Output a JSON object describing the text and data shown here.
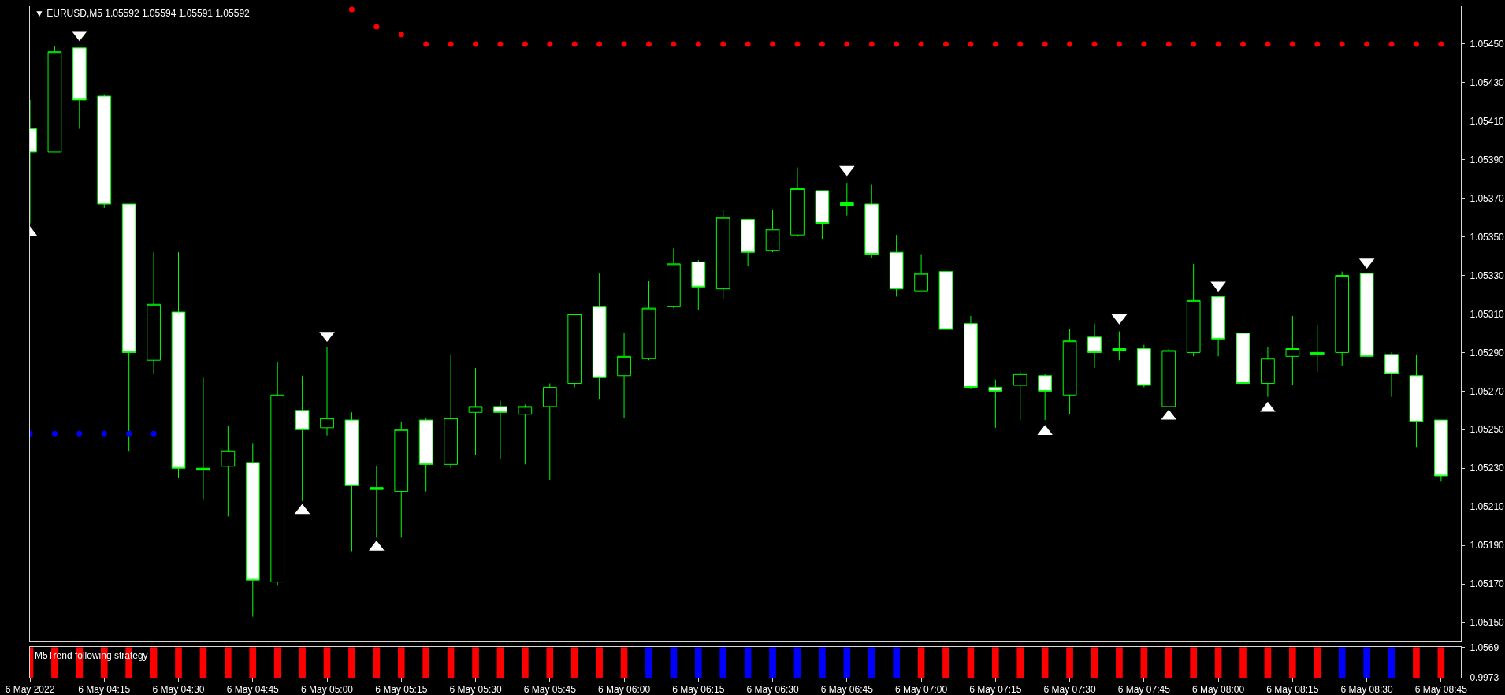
{
  "chart_data": [
    {
      "type": "candlestick",
      "title": "▼ EURUSD,M5 1.05592 1.05594 1.05591 1.05592",
      "x": [
        "2022-05-06T04:00",
        "2022-05-06T04:05",
        "2022-05-06T04:10",
        "2022-05-06T04:15",
        "2022-05-06T04:20",
        "2022-05-06T04:25",
        "2022-05-06T04:30",
        "2022-05-06T04:35",
        "2022-05-06T04:40",
        "2022-05-06T04:45",
        "2022-05-06T04:50",
        "2022-05-06T04:55",
        "2022-05-06T05:00",
        "2022-05-06T05:05",
        "2022-05-06T05:10",
        "2022-05-06T05:15",
        "2022-05-06T05:20",
        "2022-05-06T05:25",
        "2022-05-06T05:30",
        "2022-05-06T05:35",
        "2022-05-06T05:40",
        "2022-05-06T05:45",
        "2022-05-06T05:50",
        "2022-05-06T05:55",
        "2022-05-06T06:00",
        "2022-05-06T06:05",
        "2022-05-06T06:10",
        "2022-05-06T06:15",
        "2022-05-06T06:20",
        "2022-05-06T06:25",
        "2022-05-06T06:30",
        "2022-05-06T06:35",
        "2022-05-06T06:40",
        "2022-05-06T06:45",
        "2022-05-06T06:50",
        "2022-05-06T06:55",
        "2022-05-06T07:00",
        "2022-05-06T07:05",
        "2022-05-06T07:10",
        "2022-05-06T07:15",
        "2022-05-06T07:20",
        "2022-05-06T07:25",
        "2022-05-06T07:30",
        "2022-05-06T07:35",
        "2022-05-06T07:40",
        "2022-05-06T07:45",
        "2022-05-06T07:50",
        "2022-05-06T07:55",
        "2022-05-06T08:00",
        "2022-05-06T08:05",
        "2022-05-06T08:10",
        "2022-05-06T08:15",
        "2022-05-06T08:20",
        "2022-05-06T08:25",
        "2022-05-06T08:30",
        "2022-05-06T08:35",
        "2022-05-06T08:40",
        "2022-05-06T08:45"
      ],
      "ohlc": [
        [
          1.05406,
          1.05421,
          1.05357,
          1.05394
        ],
        [
          1.05394,
          1.05449,
          1.05394,
          1.05446
        ],
        [
          1.05448,
          1.05448,
          1.05406,
          1.05421
        ],
        [
          1.05423,
          1.05424,
          1.05365,
          1.05367
        ],
        [
          1.05367,
          1.05367,
          1.05239,
          1.0529
        ],
        [
          1.05286,
          1.05342,
          1.05279,
          1.05315
        ],
        [
          1.05311,
          1.05342,
          1.05225,
          1.0523
        ],
        [
          1.05229,
          1.05277,
          1.05214,
          1.0523
        ],
        [
          1.05231,
          1.05252,
          1.05205,
          1.05239
        ],
        [
          1.05233,
          1.05243,
          1.05153,
          1.05172
        ],
        [
          1.05171,
          1.05285,
          1.05169,
          1.05268
        ],
        [
          1.0526,
          1.05278,
          1.05213,
          1.0525
        ],
        [
          1.05251,
          1.05293,
          1.05247,
          1.05256
        ],
        [
          1.05255,
          1.05259,
          1.05187,
          1.05221
        ],
        [
          1.05219,
          1.05231,
          1.05194,
          1.0522
        ],
        [
          1.05218,
          1.05254,
          1.05194,
          1.0525
        ],
        [
          1.05255,
          1.05256,
          1.05218,
          1.05232
        ],
        [
          1.05232,
          1.05289,
          1.0523,
          1.05256
        ],
        [
          1.05259,
          1.05282,
          1.05237,
          1.05262
        ],
        [
          1.05262,
          1.05265,
          1.05235,
          1.05259
        ],
        [
          1.05258,
          1.05263,
          1.05232,
          1.05262
        ],
        [
          1.05262,
          1.05274,
          1.05224,
          1.05272
        ],
        [
          1.05274,
          1.0531,
          1.05272,
          1.0531
        ],
        [
          1.05314,
          1.05331,
          1.05266,
          1.05277
        ],
        [
          1.05278,
          1.053,
          1.05256,
          1.05288
        ],
        [
          1.05287,
          1.05327,
          1.05286,
          1.05313
        ],
        [
          1.05314,
          1.05344,
          1.05313,
          1.05336
        ],
        [
          1.05337,
          1.05338,
          1.05312,
          1.05324
        ],
        [
          1.05323,
          1.05364,
          1.05318,
          1.0536
        ],
        [
          1.05359,
          1.05359,
          1.05335,
          1.05342
        ],
        [
          1.05343,
          1.05364,
          1.05342,
          1.05354
        ],
        [
          1.05351,
          1.05386,
          1.0535,
          1.05375
        ],
        [
          1.05374,
          1.05374,
          1.05349,
          1.05357
        ],
        [
          1.05366,
          1.05378,
          1.05361,
          1.05368
        ],
        [
          1.05367,
          1.05377,
          1.05339,
          1.05341
        ],
        [
          1.05342,
          1.05351,
          1.05319,
          1.05323
        ],
        [
          1.05322,
          1.05341,
          1.05322,
          1.05331
        ],
        [
          1.05332,
          1.05337,
          1.05292,
          1.05302
        ],
        [
          1.05305,
          1.05309,
          1.05271,
          1.05272
        ],
        [
          1.05272,
          1.05276,
          1.05251,
          1.0527
        ],
        [
          1.05273,
          1.0528,
          1.05255,
          1.05279
        ],
        [
          1.05278,
          1.05279,
          1.05255,
          1.0527
        ],
        [
          1.05268,
          1.05302,
          1.05258,
          1.05296
        ],
        [
          1.05298,
          1.05305,
          1.05282,
          1.0529
        ],
        [
          1.05291,
          1.05301,
          1.05286,
          1.05292
        ],
        [
          1.05292,
          1.05294,
          1.05272,
          1.05273
        ],
        [
          1.05262,
          1.05292,
          1.05262,
          1.05291
        ],
        [
          1.0529,
          1.05336,
          1.05288,
          1.05317
        ],
        [
          1.05319,
          1.05319,
          1.05288,
          1.05297
        ],
        [
          1.053,
          1.05314,
          1.05269,
          1.05274
        ],
        [
          1.05274,
          1.05293,
          1.05267,
          1.05287
        ],
        [
          1.05288,
          1.05309,
          1.05273,
          1.05292
        ],
        [
          1.0529,
          1.05304,
          1.0528,
          1.05289
        ],
        [
          1.0529,
          1.05332,
          1.05283,
          1.0533
        ],
        [
          1.05331,
          1.05331,
          1.05288,
          1.05288
        ],
        [
          1.05289,
          1.0529,
          1.05267,
          1.05279
        ],
        [
          1.05278,
          1.05289,
          1.05241,
          1.05254
        ],
        [
          1.05255,
          1.05255,
          1.05223,
          1.05226
        ]
      ],
      "color": "#00ff00",
      "colors": [
        "#ffffff",
        "#000000",
        "#ffffff",
        "#ffffff",
        "#ffffff",
        "#000000",
        "#ffffff",
        "#00ff00",
        "#000000",
        "#ffffff",
        "#000000",
        "#ffffff",
        "#000000",
        "#ffffff",
        "#00ff00",
        "#000000",
        "#ffffff",
        "#000000",
        "#000000",
        "#ffffff",
        "#000000",
        "#000000",
        "#000000",
        "#ffffff",
        "#000000",
        "#000000",
        "#000000",
        "#ffffff",
        "#000000",
        "#ffffff",
        "#000000",
        "#000000",
        "#ffffff",
        "#00ff00",
        "#ffffff",
        "#ffffff",
        "#000000",
        "#ffffff",
        "#ffffff",
        "#ffffff",
        "#000000",
        "#ffffff",
        "#000000",
        "#ffffff",
        "#00ff00",
        "#ffffff",
        "#000000",
        "#000000",
        "#ffffff",
        "#ffffff",
        "#000000",
        "#000000",
        "#00ff00",
        "#000000",
        "#ffffff",
        "#ffffff",
        "#ffffff",
        "#ffffff"
      ],
      "series": [
        {
          "type": "scatter",
          "color": "#ff0000",
          "marker": "circle",
          "x": [
            "2022-05-06T05:05",
            "2022-05-06T05:10",
            "2022-05-06T05:15",
            "2022-05-06T05:20",
            "2022-05-06T05:25",
            "2022-05-06T05:30",
            "2022-05-06T05:35",
            "2022-05-06T05:40",
            "2022-05-06T05:45",
            "2022-05-06T05:50",
            "2022-05-06T05:55",
            "2022-05-06T06:00",
            "2022-05-06T06:05",
            "2022-05-06T06:10",
            "2022-05-06T06:15",
            "2022-05-06T06:20",
            "2022-05-06T06:25",
            "2022-05-06T06:30",
            "2022-05-06T06:35",
            "2022-05-06T06:40",
            "2022-05-06T06:45",
            "2022-05-06T06:50",
            "2022-05-06T06:55",
            "2022-05-06T07:00",
            "2022-05-06T07:05",
            "2022-05-06T07:10",
            "2022-05-06T07:15",
            "2022-05-06T07:20",
            "2022-05-06T07:25",
            "2022-05-06T07:30",
            "2022-05-06T07:35",
            "2022-05-06T07:40",
            "2022-05-06T07:45",
            "2022-05-06T07:50",
            "2022-05-06T07:55",
            "2022-05-06T08:00",
            "2022-05-06T08:05",
            "2022-05-06T08:10",
            "2022-05-06T08:15",
            "2022-05-06T08:20",
            "2022-05-06T08:25",
            "2022-05-06T08:30",
            "2022-05-06T08:35",
            "2022-05-06T08:40",
            "2022-05-06T08:45"
          ],
          "values": [
            1.05468,
            1.05459,
            1.05455,
            1.0545,
            1.0545,
            1.0545,
            1.0545,
            1.0545,
            1.0545,
            1.0545,
            1.0545,
            1.0545,
            1.0545,
            1.0545,
            1.0545,
            1.0545,
            1.0545,
            1.0545,
            1.0545,
            1.0545,
            1.0545,
            1.0545,
            1.0545,
            1.0545,
            1.0545,
            1.0545,
            1.0545,
            1.0545,
            1.0545,
            1.0545,
            1.0545,
            1.0545,
            1.0545,
            1.0545,
            1.0545,
            1.0545,
            1.0545,
            1.0545,
            1.0545,
            1.0545,
            1.0545,
            1.0545,
            1.0545,
            1.0545,
            1.0545
          ]
        },
        {
          "type": "scatter",
          "color": "#0000ff",
          "marker": "circle",
          "x": [
            "2022-05-06T04:00",
            "2022-05-06T04:05",
            "2022-05-06T04:10",
            "2022-05-06T04:15",
            "2022-05-06T04:20",
            "2022-05-06T04:25"
          ],
          "values": [
            1.05248,
            1.05248,
            1.05248,
            1.05248,
            1.05248,
            1.05248
          ]
        },
        {
          "type": "scatter",
          "color": "#ffffff",
          "marker": "triangle",
          "x": [
            "2022-05-06T04:00",
            "2022-05-06T04:55",
            "2022-05-06T05:10",
            "2022-05-06T07:25",
            "2022-05-06T07:50",
            "2022-05-06T08:10"
          ],
          "values": [
            1.05352,
            1.05208,
            1.05189,
            1.05249,
            1.05257,
            1.05261
          ]
        },
        {
          "type": "scatter",
          "color": "#ffffff",
          "marker": "triangle",
          "x": [
            "2022-05-06T04:10",
            "2022-05-06T05:00",
            "2022-05-06T06:45",
            "2022-05-06T07:40",
            "2022-05-06T08:00",
            "2022-05-06T08:30"
          ],
          "values": [
            1.05455,
            1.05299,
            1.05385,
            1.05308,
            1.05325,
            1.05337
          ]
        }
      ],
      "xlim": [
        "2022-05-06T04:00",
        "2022-05-06T08:49"
      ],
      "ylim": [
        1.0514,
        1.0547
      ],
      "yticks": [
        {
          "value": 1.0545,
          "label": "1.05450"
        },
        {
          "value": 1.0543,
          "label": "1.05430"
        },
        {
          "value": 1.0541,
          "label": "1.05410"
        },
        {
          "value": 1.0539,
          "label": "1.05390"
        },
        {
          "value": 1.0537,
          "label": "1.05370"
        },
        {
          "value": 1.0535,
          "label": "1.05350"
        },
        {
          "value": 1.0533,
          "label": "1.05330"
        },
        {
          "value": 1.0531,
          "label": "1.05310"
        },
        {
          "value": 1.0529,
          "label": "1.05290"
        },
        {
          "value": 1.0527,
          "label": "1.05270"
        },
        {
          "value": 1.0525,
          "label": "1.05250"
        },
        {
          "value": 1.0523,
          "label": "1.05230"
        },
        {
          "value": 1.0521,
          "label": "1.05210"
        },
        {
          "value": 1.0519,
          "label": "1.05190"
        },
        {
          "value": 1.0517,
          "label": "1.05170"
        },
        {
          "value": 1.0515,
          "label": "1.05150"
        }
      ],
      "tick_labels": "y"
    },
    {
      "type": "bar",
      "title": "M5Trend following strategy",
      "x": [
        "2022-05-06T04:00",
        "2022-05-06T04:05",
        "2022-05-06T04:10",
        "2022-05-06T04:15",
        "2022-05-06T04:20",
        "2022-05-06T04:25",
        "2022-05-06T04:30",
        "2022-05-06T04:35",
        "2022-05-06T04:40",
        "2022-05-06T04:45",
        "2022-05-06T04:50",
        "2022-05-06T04:55",
        "2022-05-06T05:00",
        "2022-05-06T05:05",
        "2022-05-06T05:10",
        "2022-05-06T05:15",
        "2022-05-06T05:20",
        "2022-05-06T05:25",
        "2022-05-06T05:30",
        "2022-05-06T05:35",
        "2022-05-06T05:40",
        "2022-05-06T05:45",
        "2022-05-06T05:50",
        "2022-05-06T05:55",
        "2022-05-06T06:00",
        "2022-05-06T06:05",
        "2022-05-06T06:10",
        "2022-05-06T06:15",
        "2022-05-06T06:20",
        "2022-05-06T06:25",
        "2022-05-06T06:30",
        "2022-05-06T06:35",
        "2022-05-06T06:40",
        "2022-05-06T06:45",
        "2022-05-06T06:50",
        "2022-05-06T06:55",
        "2022-05-06T07:00",
        "2022-05-06T07:05",
        "2022-05-06T07:10",
        "2022-05-06T07:15",
        "2022-05-06T07:20",
        "2022-05-06T07:25",
        "2022-05-06T07:30",
        "2022-05-06T07:35",
        "2022-05-06T07:40",
        "2022-05-06T07:45",
        "2022-05-06T07:50",
        "2022-05-06T07:55",
        "2022-05-06T08:00",
        "2022-05-06T08:05",
        "2022-05-06T08:10",
        "2022-05-06T08:15",
        "2022-05-06T08:20",
        "2022-05-06T08:25",
        "2022-05-06T08:30",
        "2022-05-06T08:35",
        "2022-05-06T08:40",
        "2022-05-06T08:45"
      ],
      "values": [
        0.0596,
        0.0596,
        0.0596,
        0.0596,
        0.0596,
        0.0596,
        0.0596,
        0.0596,
        0.0596,
        0.0596,
        0.0596,
        0.0596,
        0.0596,
        0.0596,
        0.0596,
        0.0596,
        0.0596,
        0.0596,
        0.0596,
        0.0596,
        0.0596,
        0.0596,
        0.0596,
        0.0596,
        0.0596,
        0.0596,
        0.0596,
        0.0596,
        0.0596,
        0.0596,
        0.0596,
        0.0596,
        0.0596,
        0.0596,
        0.0596,
        0.0596,
        0.0596,
        0.0596,
        0.0596,
        0.0596,
        0.0596,
        0.0596,
        0.0596,
        0.0596,
        0.0596,
        0.0596,
        0.0596,
        0.0596,
        0.0596,
        0.0596,
        0.0596,
        0.0596,
        0.0596,
        0.0596,
        0.0596,
        0.0596,
        0.0596,
        0.0596
      ],
      "base": [
        0.9973,
        0.9973,
        0.9973,
        0.9973,
        0.9973,
        0.9973,
        0.9973,
        0.9973,
        0.9973,
        0.9973,
        0.9973,
        0.9973,
        0.9973,
        0.9973,
        0.9973,
        0.9973,
        0.9973,
        0.9973,
        0.9973,
        0.9973,
        0.9973,
        0.9973,
        0.9973,
        0.9973,
        0.9973,
        0.9973,
        0.9973,
        0.9973,
        0.9973,
        0.9973,
        0.9973,
        0.9973,
        0.9973,
        0.9973,
        0.9973,
        0.9973,
        0.9973,
        0.9973,
        0.9973,
        0.9973,
        0.9973,
        0.9973,
        0.9973,
        0.9973,
        0.9973,
        0.9973,
        0.9973,
        0.9973,
        0.9973,
        0.9973,
        0.9973,
        0.9973,
        0.9973,
        0.9973,
        0.9973,
        0.9973,
        0.9973,
        0.9973
      ],
      "colors": [
        "#ff0000",
        "#ff0000",
        "#ff0000",
        "#ff0000",
        "#ff0000",
        "#ff0000",
        "#ff0000",
        "#ff0000",
        "#ff0000",
        "#ff0000",
        "#ff0000",
        "#ff0000",
        "#ff0000",
        "#ff0000",
        "#ff0000",
        "#ff0000",
        "#ff0000",
        "#ff0000",
        "#ff0000",
        "#ff0000",
        "#ff0000",
        "#ff0000",
        "#ff0000",
        "#ff0000",
        "#ff0000",
        "#0000ff",
        "#0000ff",
        "#0000ff",
        "#0000ff",
        "#0000ff",
        "#0000ff",
        "#0000ff",
        "#0000ff",
        "#0000ff",
        "#0000ff",
        "#0000ff",
        "#ff0000",
        "#ff0000",
        "#ff0000",
        "#ff0000",
        "#ff0000",
        "#ff0000",
        "#ff0000",
        "#ff0000",
        "#ff0000",
        "#ff0000",
        "#ff0000",
        "#ff0000",
        "#ff0000",
        "#ff0000",
        "#ff0000",
        "#ff0000",
        "#ff0000",
        "#0000ff",
        "#0000ff",
        "#0000ff",
        "#ff0000",
        "#ff0000"
      ],
      "xlim": [
        "2022-05-06T04:00",
        "2022-05-06T08:49"
      ],
      "xticks": [
        {
          "value": "2022-05-06T04:00",
          "label": "6 May 2022"
        },
        {
          "value": "2022-05-06T04:15",
          "label": "6 May 04:15"
        },
        {
          "value": "2022-05-06T04:30",
          "label": "6 May 04:30"
        },
        {
          "value": "2022-05-06T04:45",
          "label": "6 May 04:45"
        },
        {
          "value": "2022-05-06T05:00",
          "label": "6 May 05:00"
        },
        {
          "value": "2022-05-06T05:15",
          "label": "6 May 05:15"
        },
        {
          "value": "2022-05-06T05:30",
          "label": "6 May 05:30"
        },
        {
          "value": "2022-05-06T05:45",
          "label": "6 May 05:45"
        },
        {
          "value": "2022-05-06T06:00",
          "label": "6 May 06:00"
        },
        {
          "value": "2022-05-06T06:15",
          "label": "6 May 06:15"
        },
        {
          "value": "2022-05-06T06:30",
          "label": "6 May 06:30"
        },
        {
          "value": "2022-05-06T06:45",
          "label": "6 May 06:45"
        },
        {
          "value": "2022-05-06T07:00",
          "label": "6 May 07:00"
        },
        {
          "value": "2022-05-06T07:15",
          "label": "6 May 07:15"
        },
        {
          "value": "2022-05-06T07:30",
          "label": "6 May 07:30"
        },
        {
          "value": "2022-05-06T07:45",
          "label": "6 May 07:45"
        },
        {
          "value": "2022-05-06T08:00",
          "label": "6 May 08:00"
        },
        {
          "value": "2022-05-06T08:15",
          "label": "6 May 08:15"
        },
        {
          "value": "2022-05-06T08:30",
          "label": "6 May 08:30"
        },
        {
          "value": "2022-05-06T08:45",
          "label": "6 May 08:45"
        }
      ],
      "ylim": [
        0.9973,
        1.0569
      ],
      "yticks": [
        1.0569,
        0.9973
      ]
    }
  ]
}
